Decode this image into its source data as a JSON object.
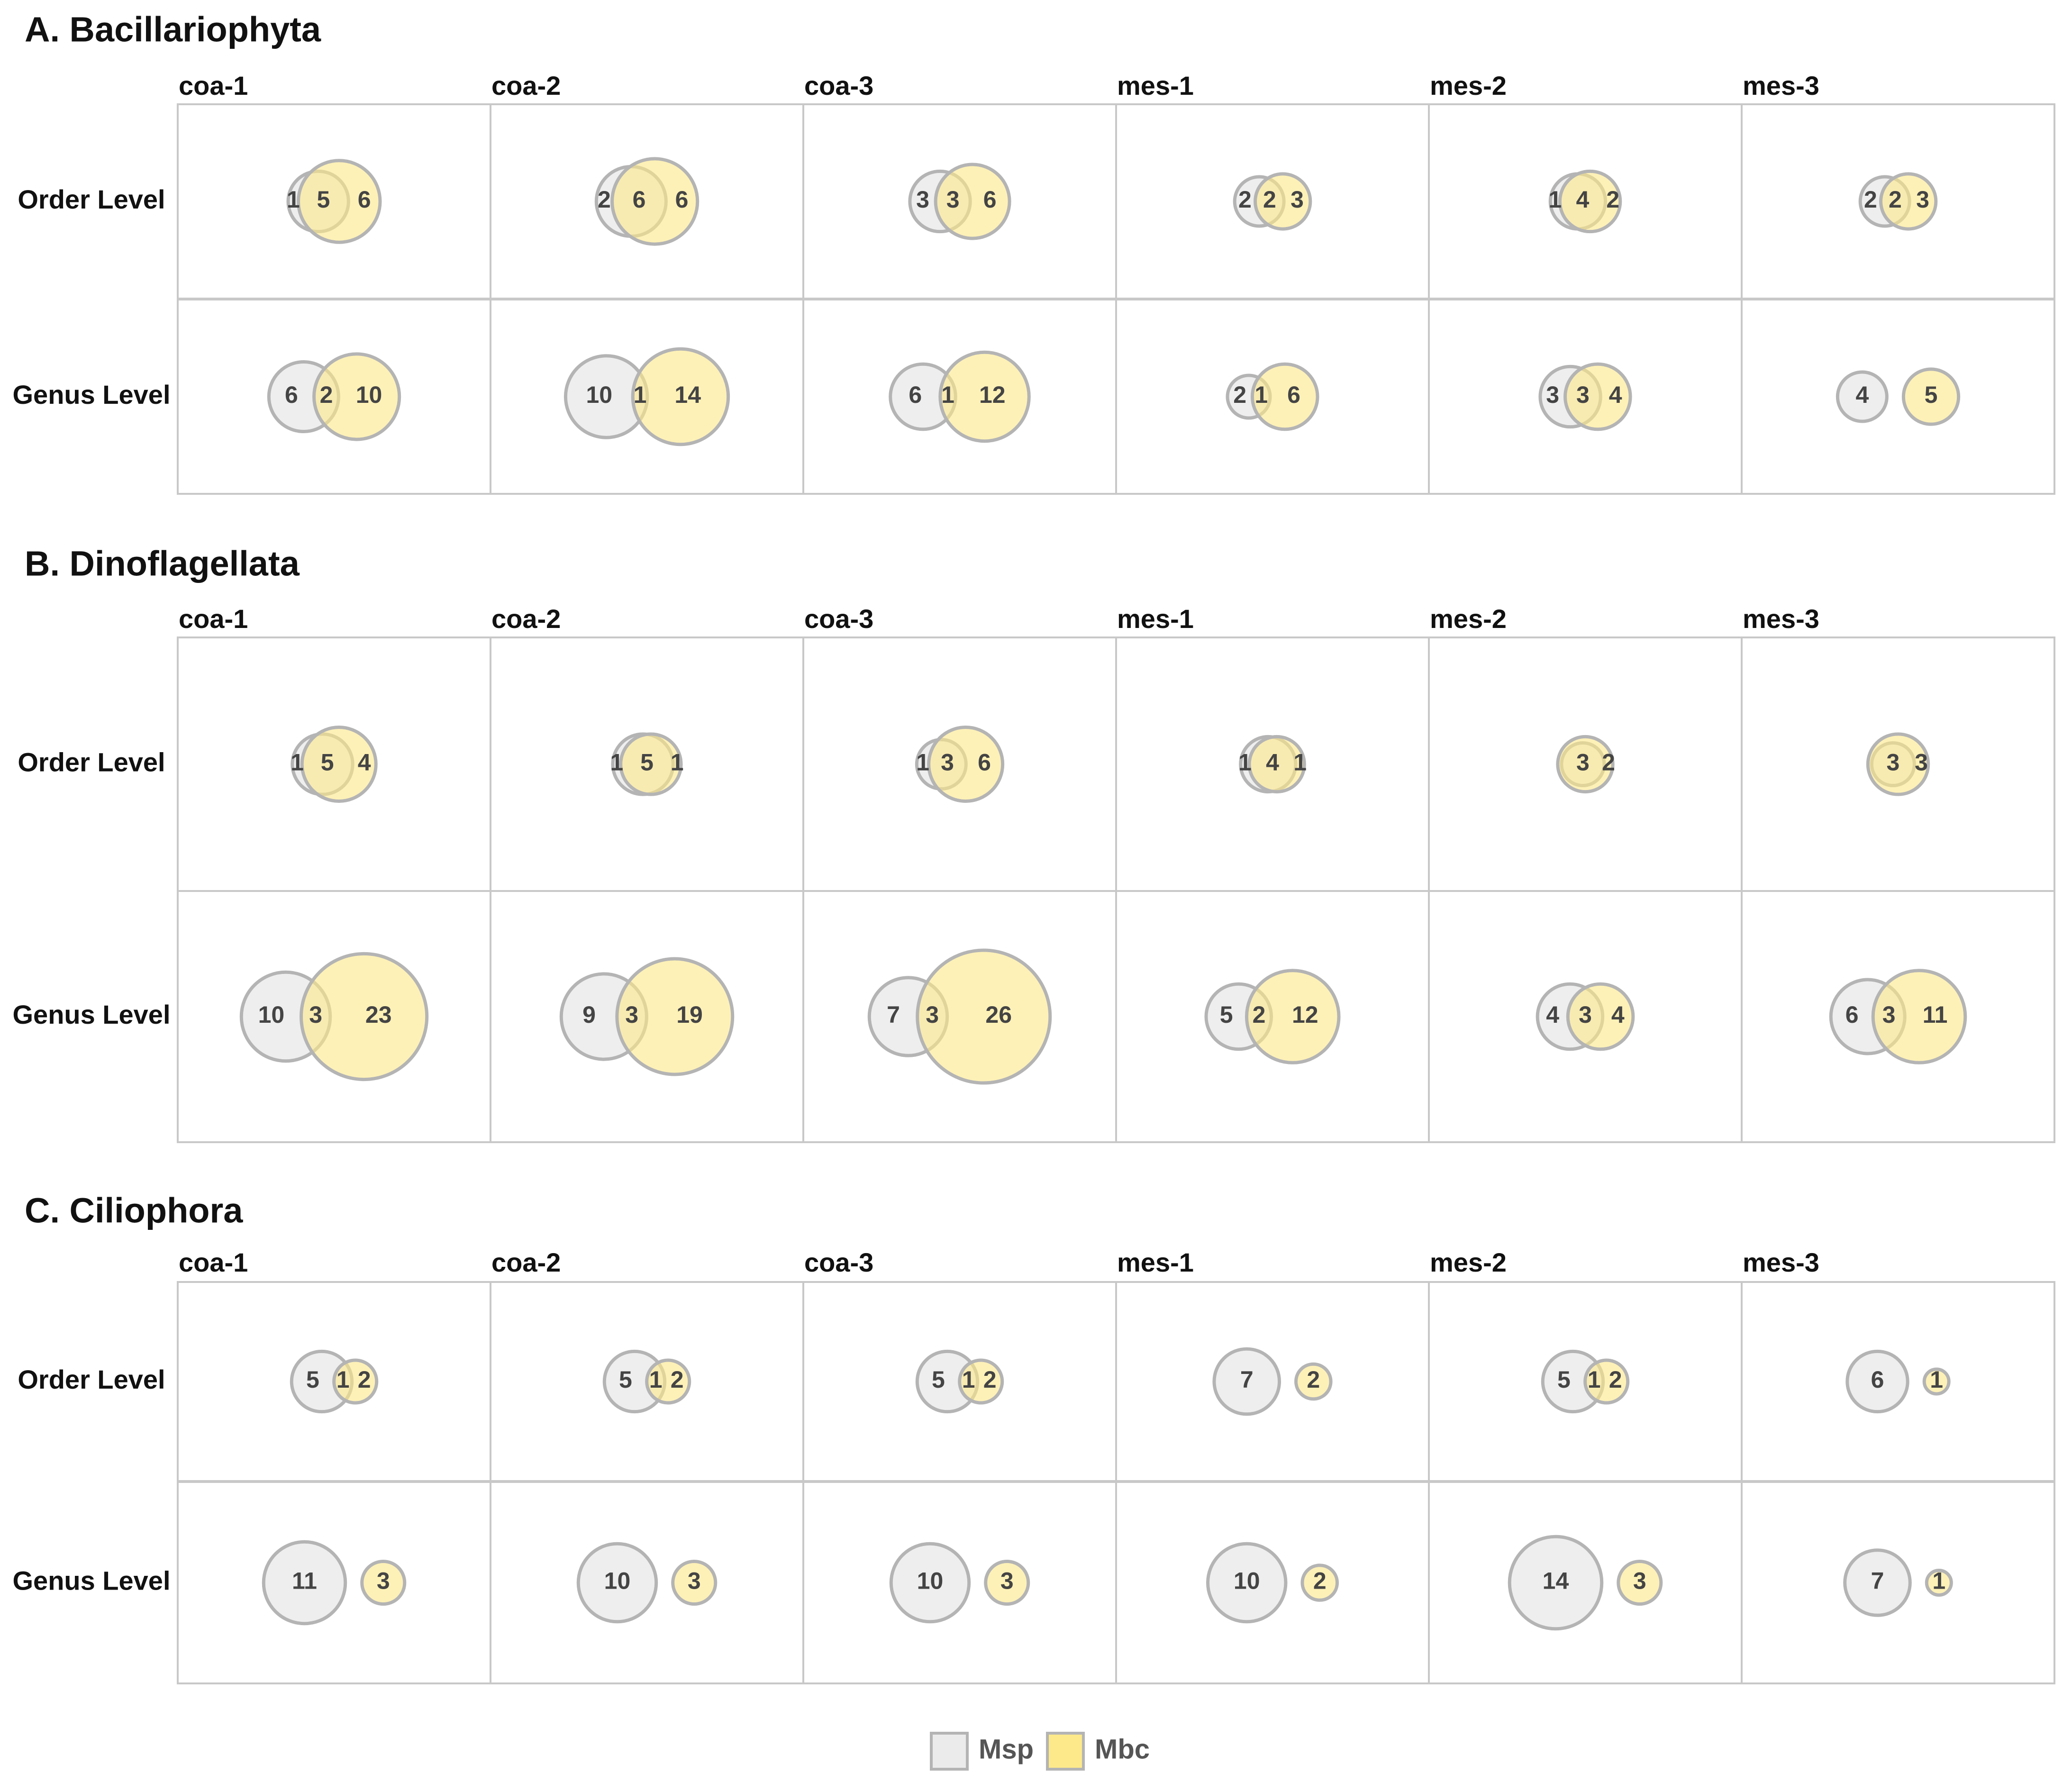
{
  "colors": {
    "msp": "#ebebeb",
    "mbc": "#fde98a",
    "stroke": "#b4b4b4"
  },
  "chart_data": {
    "type": "venn",
    "legend": [
      {
        "key": "msp",
        "label": "Msp"
      },
      {
        "key": "mbc",
        "label": "Mbc"
      }
    ],
    "sites": [
      "coa-1",
      "coa-2",
      "coa-3",
      "mes-1",
      "mes-2",
      "mes-3"
    ],
    "row_labels": [
      "Order Level",
      "Genus Level"
    ],
    "value_fields": [
      "msp_only",
      "shared",
      "mbc_only"
    ],
    "sections": [
      {
        "title": "A. Bacillariophyta",
        "rows": [
          [
            [
              1,
              5,
              6
            ],
            [
              2,
              6,
              6
            ],
            [
              3,
              3,
              6
            ],
            [
              2,
              2,
              3
            ],
            [
              1,
              4,
              2
            ],
            [
              2,
              2,
              3
            ]
          ],
          [
            [
              6,
              2,
              10
            ],
            [
              10,
              1,
              14
            ],
            [
              6,
              1,
              12
            ],
            [
              2,
              1,
              6
            ],
            [
              3,
              3,
              4
            ],
            [
              4,
              0,
              5
            ]
          ]
        ]
      },
      {
        "title": "B. Dinoflagellata",
        "rows": [
          [
            [
              1,
              5,
              4
            ],
            [
              1,
              5,
              1
            ],
            [
              1,
              3,
              6
            ],
            [
              1,
              4,
              1
            ],
            [
              0,
              3,
              2
            ],
            [
              0,
              3,
              3
            ]
          ],
          [
            [
              10,
              3,
              23
            ],
            [
              9,
              3,
              19
            ],
            [
              7,
              3,
              26
            ],
            [
              5,
              2,
              12
            ],
            [
              4,
              3,
              4
            ],
            [
              6,
              3,
              11
            ]
          ]
        ]
      },
      {
        "title": "C. Ciliophora",
        "rows": [
          [
            [
              5,
              1,
              2
            ],
            [
              5,
              1,
              2
            ],
            [
              5,
              1,
              2
            ],
            [
              7,
              0,
              2
            ],
            [
              5,
              1,
              2
            ],
            [
              6,
              0,
              1
            ]
          ],
          [
            [
              11,
              0,
              3
            ],
            [
              10,
              0,
              3
            ],
            [
              10,
              0,
              3
            ],
            [
              10,
              0,
              2
            ],
            [
              14,
              0,
              3
            ],
            [
              7,
              0,
              1
            ]
          ]
        ]
      }
    ]
  }
}
